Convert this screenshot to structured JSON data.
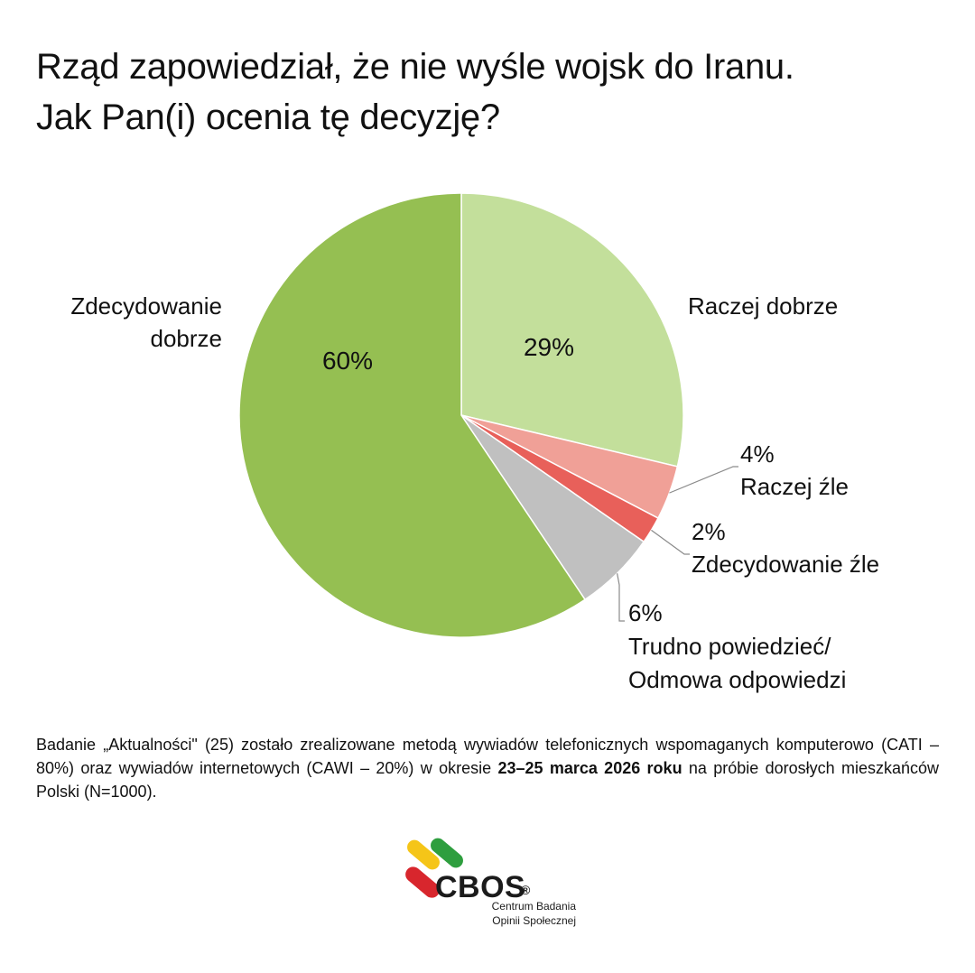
{
  "chart_data": {
    "type": "pie",
    "title_lines": [
      "Rząd zapowiedział, że nie wyśle wojsk do Iranu.",
      "Jak Pan(i) ocenia tę decyzję?"
    ],
    "slices": [
      {
        "label": "Raczej dobrze",
        "value": 29,
        "value_label": "29%",
        "color": "#c3df9b"
      },
      {
        "label": "Raczej źle",
        "value": 4,
        "value_label": "4%",
        "color": "#f0a097"
      },
      {
        "label": "Zdecydowanie źle",
        "value": 2,
        "value_label": "2%",
        "color": "#e8605a"
      },
      {
        "label": "Trudno powiedzieć/ Odmowa odpowiedzi",
        "label_lines": [
          "Trudno powiedzieć/",
          "Odmowa odpowiedzi"
        ],
        "value": 6,
        "value_label": "6%",
        "color": "#c0c0c0"
      },
      {
        "label": "Zdecydowanie dobrze",
        "label_lines": [
          "Zdecydowanie",
          "dobrze"
        ],
        "value": 60,
        "value_label": "60%",
        "color": "#95bf52"
      }
    ]
  },
  "note": {
    "part1": "Badanie „Aktualności\" (25) zostało zrealizowane metodą wywiadów telefonicznych wspomaganych komputerowo (CATI – 80%) oraz wywiadów internetowych (CAWI – 20%) w okresie ",
    "bold": "23–25 marca 2026 roku",
    "part2": " na próbie dorosłych mieszkańców Polski (N=1000)."
  },
  "logo": {
    "name": "CBOS",
    "registered": "®",
    "subtitle_lines": [
      "Centrum Badania",
      "Opinii Społecznej"
    ]
  },
  "colors": {
    "leader_line": "#8a8a8a",
    "logo_yellow": "#f5c518",
    "logo_green": "#2e9e3e",
    "logo_red": "#d8262d"
  }
}
